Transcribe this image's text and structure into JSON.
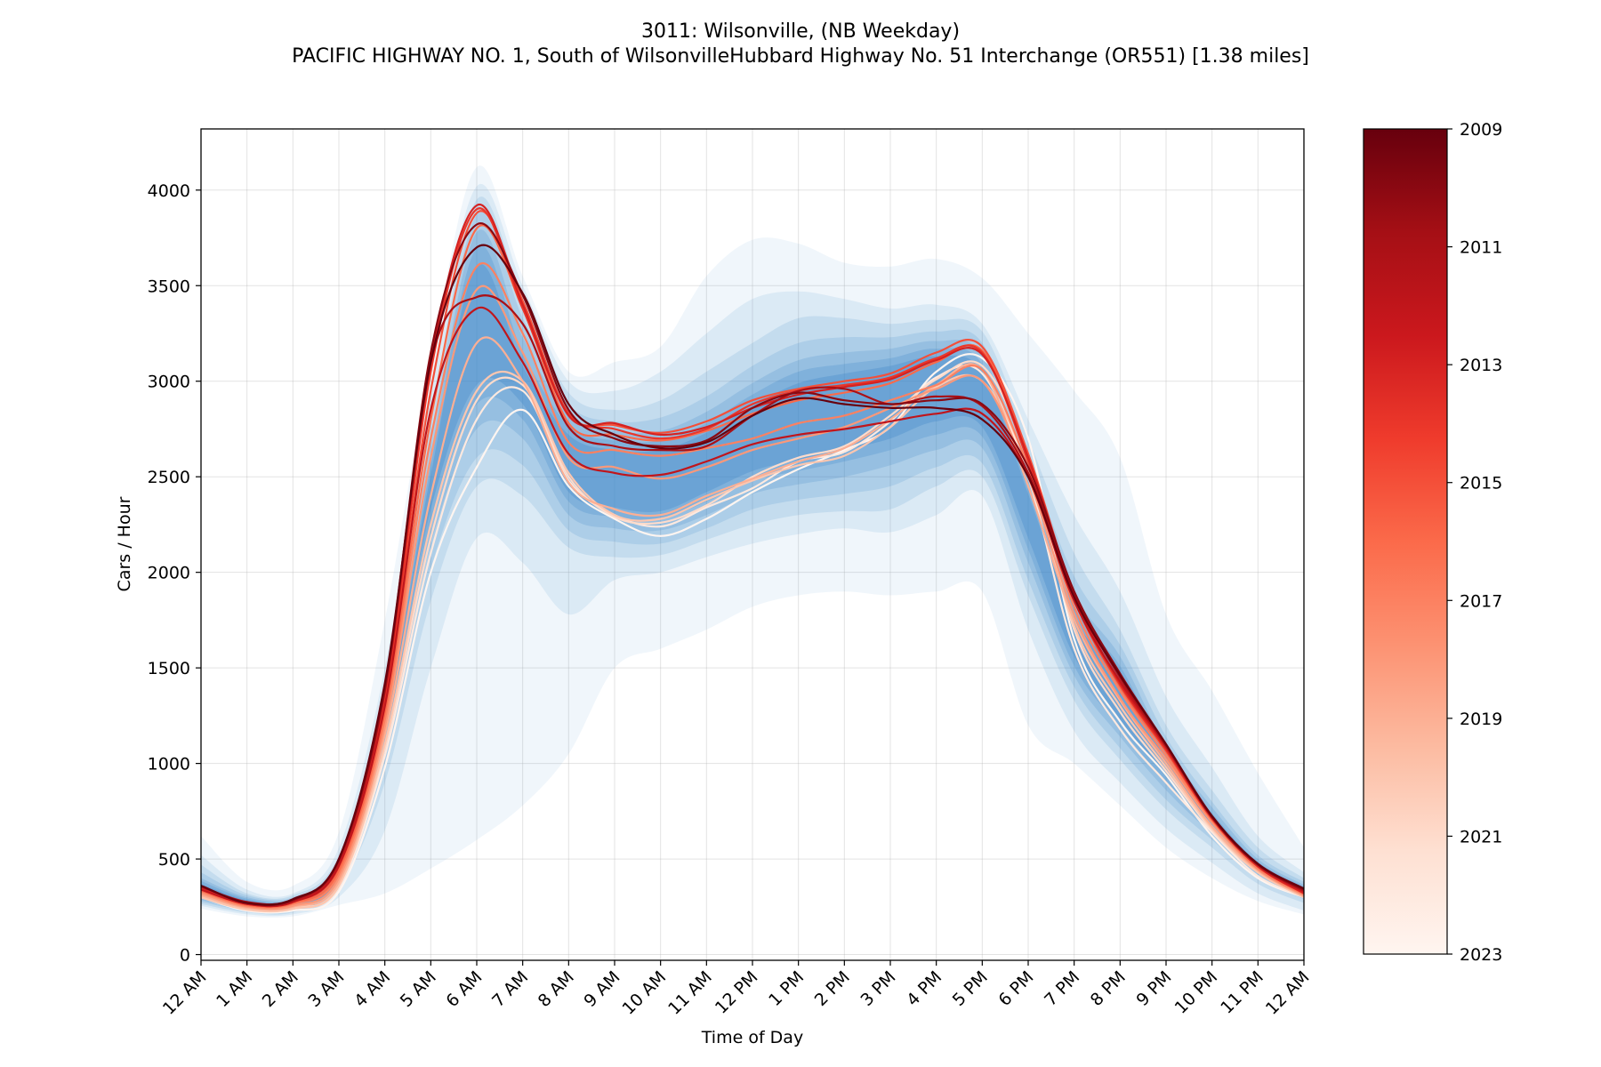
{
  "chart_data": {
    "type": "line",
    "title": "3011: Wilsonville, (NB Weekday)",
    "subtitle": "PACIFIC HIGHWAY NO. 1, South of WilsonvilleHubbard Highway No. 51 Interchange (OR551) [1.38 miles]",
    "xlabel": "Time of Day",
    "ylabel": "Cars / Hour",
    "x_ticks": [
      "12 AM",
      "1 AM",
      "2 AM",
      "3 AM",
      "4 AM",
      "5 AM",
      "6 AM",
      "7 AM",
      "8 AM",
      "9 AM",
      "10 AM",
      "11 AM",
      "12 PM",
      "1 PM",
      "2 PM",
      "3 PM",
      "4 PM",
      "5 PM",
      "6 PM",
      "7 PM",
      "8 PM",
      "9 PM",
      "10 PM",
      "11 PM",
      "12 AM"
    ],
    "y_ticks": [
      0,
      500,
      1000,
      1500,
      2000,
      2500,
      3000,
      3500,
      4000
    ],
    "xlim": [
      0,
      24
    ],
    "ylim": [
      -30,
      4320
    ],
    "grid": true,
    "colorbar": {
      "colormap": "Reds",
      "range": [
        2009,
        2023
      ],
      "ticks": [
        "2009",
        "2011",
        "2013",
        "2015",
        "2017",
        "2019",
        "2021",
        "2023"
      ],
      "colors": [
        "#fff5f0",
        "#fee0d2",
        "#fcbba1",
        "#fc9272",
        "#fb6a4a",
        "#ef3b2c",
        "#cb181d",
        "#a50f15",
        "#67000d"
      ]
    },
    "band_color": "#3a86c8",
    "hours": [
      0,
      1,
      2,
      3,
      4,
      5,
      6,
      7,
      8,
      9,
      10,
      11,
      12,
      13,
      14,
      15,
      16,
      17,
      18,
      19,
      20,
      21,
      22,
      23,
      24
    ],
    "quantile_bands": [
      {
        "lower": [
          240,
          200,
          200,
          260,
          320,
          450,
          600,
          780,
          1050,
          1500,
          1600,
          1700,
          1820,
          1880,
          1900,
          1880,
          1900,
          1900,
          1200,
          1000,
          780,
          560,
          400,
          280,
          210
        ],
        "upper": [
          620,
          380,
          360,
          640,
          1750,
          3100,
          4120,
          3550,
          3050,
          3100,
          3180,
          3550,
          3740,
          3720,
          3620,
          3600,
          3640,
          3540,
          3250,
          2950,
          2600,
          1780,
          1380,
          950,
          560
        ]
      },
      {
        "lower": [
          255,
          210,
          210,
          300,
          650,
          1500,
          2180,
          2050,
          1780,
          1960,
          2000,
          2080,
          2150,
          2200,
          2230,
          2210,
          2300,
          2400,
          1700,
          1170,
          900,
          660,
          480,
          320,
          230
        ],
        "upper": [
          520,
          340,
          320,
          560,
          1500,
          2950,
          4020,
          3500,
          3000,
          2950,
          3050,
          3250,
          3430,
          3470,
          3430,
          3380,
          3400,
          3300,
          2800,
          2300,
          1900,
          1350,
          980,
          620,
          430
        ]
      },
      {
        "lower": [
          265,
          220,
          220,
          340,
          900,
          1850,
          2450,
          2400,
          2130,
          2080,
          2090,
          2170,
          2250,
          2300,
          2320,
          2330,
          2450,
          2500,
          1880,
          1330,
          1020,
          760,
          560,
          370,
          270
        ],
        "upper": [
          470,
          320,
          310,
          520,
          1400,
          2800,
          3950,
          3430,
          2940,
          2850,
          2900,
          3050,
          3200,
          3330,
          3330,
          3300,
          3320,
          3260,
          2700,
          2100,
          1700,
          1200,
          860,
          560,
          400
        ]
      },
      {
        "lower": [
          275,
          230,
          225,
          360,
          1000,
          2020,
          2600,
          2560,
          2220,
          2160,
          2150,
          2230,
          2330,
          2380,
          2410,
          2450,
          2550,
          2570,
          1960,
          1400,
          1080,
          810,
          600,
          400,
          290
        ],
        "upper": [
          430,
          310,
          300,
          480,
          1320,
          2700,
          3870,
          3330,
          2880,
          2790,
          2810,
          2920,
          3080,
          3200,
          3230,
          3230,
          3260,
          3200,
          2600,
          1980,
          1620,
          1140,
          800,
          520,
          380
        ]
      },
      {
        "lower": [
          285,
          235,
          230,
          380,
          1080,
          2150,
          2750,
          2700,
          2300,
          2230,
          2220,
          2300,
          2410,
          2460,
          2500,
          2560,
          2640,
          2650,
          2050,
          1460,
          1140,
          860,
          630,
          420,
          300
        ],
        "upper": [
          400,
          300,
          290,
          455,
          1270,
          2620,
          3780,
          3230,
          2820,
          2740,
          2740,
          2840,
          2990,
          3110,
          3150,
          3170,
          3210,
          3140,
          2520,
          1890,
          1560,
          1090,
          770,
          500,
          365
        ]
      },
      {
        "lower": [
          295,
          240,
          235,
          395,
          1130,
          2250,
          2880,
          2800,
          2370,
          2290,
          2280,
          2370,
          2480,
          2530,
          2580,
          2640,
          2720,
          2710,
          2120,
          1510,
          1190,
          900,
          660,
          440,
          310
        ],
        "upper": [
          385,
          292,
          282,
          440,
          1230,
          2560,
          3700,
          3150,
          2770,
          2690,
          2690,
          2780,
          2930,
          3050,
          3090,
          3120,
          3170,
          3090,
          2460,
          1820,
          1510,
          1050,
          740,
          485,
          355
        ]
      },
      {
        "lower": [
          305,
          245,
          240,
          405,
          1165,
          2330,
          2980,
          2880,
          2420,
          2340,
          2320,
          2420,
          2530,
          2590,
          2640,
          2700,
          2790,
          2760,
          2180,
          1560,
          1230,
          930,
          685,
          455,
          320
        ],
        "upper": [
          370,
          285,
          276,
          428,
          1205,
          2510,
          3600,
          3080,
          2720,
          2640,
          2640,
          2730,
          2870,
          2990,
          3040,
          3080,
          3130,
          3050,
          2410,
          1760,
          1470,
          1020,
          720,
          470,
          345
        ]
      }
    ],
    "series": [
      {
        "year": 2009,
        "values": [
          300,
          230,
          230,
          330,
          980,
          2000,
          2550,
          2850,
          2450,
          2280,
          2190,
          2280,
          2420,
          2540,
          2640,
          2760,
          3050,
          3120,
          2700,
          1650,
          1220,
          940,
          620,
          400,
          300
        ]
      },
      {
        "year": 2010,
        "values": [
          305,
          240,
          245,
          350,
          1040,
          2100,
          2800,
          2950,
          2480,
          2300,
          2240,
          2340,
          2440,
          2580,
          2630,
          2790,
          3020,
          3040,
          2500,
          1600,
          1180,
          900,
          640,
          410,
          300
        ]
      },
      {
        "year": 2011,
        "values": [
          310,
          240,
          240,
          360,
          1080,
          2180,
          2900,
          2980,
          2500,
          2290,
          2260,
          2350,
          2500,
          2600,
          2660,
          2820,
          3010,
          3080,
          2600,
          1700,
          1270,
          960,
          650,
          430,
          305
        ]
      },
      {
        "year": 2012,
        "values": [
          300,
          235,
          240,
          360,
          1100,
          2250,
          2950,
          3000,
          2520,
          2300,
          2280,
          2380,
          2480,
          2560,
          2610,
          2760,
          2970,
          3000,
          2550,
          1720,
          1300,
          980,
          660,
          430,
          300
        ]
      },
      {
        "year": 2013,
        "values": [
          310,
          245,
          250,
          380,
          1150,
          2400,
          3200,
          3000,
          2470,
          2330,
          2300,
          2400,
          2490,
          2580,
          2650,
          2800,
          2980,
          3060,
          2450,
          1750,
          1330,
          1000,
          670,
          440,
          305
        ]
      },
      {
        "year": 2014,
        "values": [
          320,
          250,
          255,
          400,
          1190,
          2600,
          3480,
          3150,
          2600,
          2550,
          2490,
          2550,
          2640,
          2700,
          2760,
          2860,
          2960,
          3000,
          2500,
          1780,
          1340,
          1020,
          690,
          445,
          310
        ]
      },
      {
        "year": 2015,
        "values": [
          330,
          255,
          265,
          420,
          1230,
          2700,
          3600,
          3250,
          2680,
          2640,
          2610,
          2650,
          2700,
          2780,
          2820,
          2900,
          2980,
          3060,
          2550,
          1820,
          1380,
          1040,
          700,
          450,
          315
        ]
      },
      {
        "year": 2016,
        "values": [
          335,
          260,
          270,
          440,
          1270,
          2800,
          3800,
          3380,
          2780,
          2720,
          2690,
          2740,
          2830,
          2900,
          2940,
          2990,
          3100,
          3160,
          2600,
          1860,
          1400,
          1060,
          710,
          460,
          320
        ]
      },
      {
        "year": 2017,
        "values": [
          340,
          265,
          275,
          460,
          1310,
          2950,
          3880,
          3420,
          2830,
          2770,
          2730,
          2790,
          2900,
          2960,
          3000,
          3040,
          3150,
          3180,
          2620,
          1880,
          1420,
          1080,
          720,
          465,
          325
        ]
      },
      {
        "year": 2018,
        "values": [
          345,
          265,
          275,
          470,
          1340,
          3050,
          3900,
          3380,
          2830,
          2750,
          2700,
          2750,
          2880,
          2950,
          2980,
          3020,
          3120,
          3150,
          2580,
          1860,
          1410,
          1070,
          710,
          460,
          320
        ]
      },
      {
        "year": 2019,
        "values": [
          350,
          270,
          280,
          480,
          1370,
          3100,
          3920,
          3400,
          2820,
          2780,
          2720,
          2760,
          2860,
          2930,
          2970,
          3010,
          3110,
          3140,
          2600,
          1880,
          1420,
          1080,
          715,
          462,
          322
        ]
      },
      {
        "year": 2020,
        "values": [
          340,
          265,
          275,
          465,
          1300,
          2850,
          3380,
          3100,
          2620,
          2520,
          2510,
          2580,
          2670,
          2720,
          2750,
          2790,
          2830,
          2830,
          2500,
          1850,
          1430,
          1090,
          720,
          470,
          330
        ]
      },
      {
        "year": 2021,
        "values": [
          355,
          275,
          285,
          490,
          1380,
          3100,
          3440,
          3300,
          2760,
          2660,
          2640,
          2660,
          2820,
          2950,
          2960,
          2880,
          2920,
          2870,
          2520,
          1880,
          1450,
          1090,
          720,
          470,
          335
        ]
      },
      {
        "year": 2022,
        "values": [
          360,
          270,
          285,
          500,
          1400,
          3150,
          3820,
          3450,
          2850,
          2700,
          2660,
          2690,
          2860,
          2940,
          2900,
          2880,
          2900,
          2880,
          2550,
          1900,
          1470,
          1100,
          720,
          470,
          340
        ]
      },
      {
        "year": 2023,
        "values": [
          360,
          270,
          290,
          500,
          1420,
          3100,
          3700,
          3460,
          2880,
          2720,
          2650,
          2680,
          2820,
          2910,
          2880,
          2860,
          2860,
          2800,
          2500,
          1870,
          1460,
          1100,
          725,
          475,
          345
        ]
      }
    ]
  }
}
